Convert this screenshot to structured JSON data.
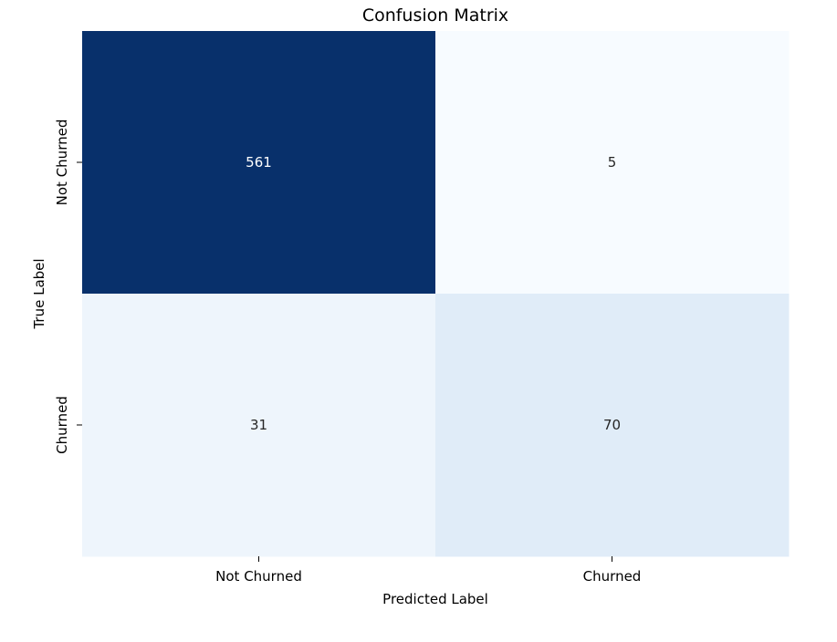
{
  "chart_data": {
    "type": "heatmap",
    "title": "Confusion Matrix",
    "xlabel": "Predicted Label",
    "ylabel": "True Label",
    "x_categories": [
      "Not Churned",
      "Churned"
    ],
    "y_categories": [
      "Not Churned",
      "Churned"
    ],
    "values": [
      [
        561,
        5
      ],
      [
        31,
        70
      ]
    ],
    "colormap": "Blues",
    "colorbar": false,
    "grid": false
  }
}
